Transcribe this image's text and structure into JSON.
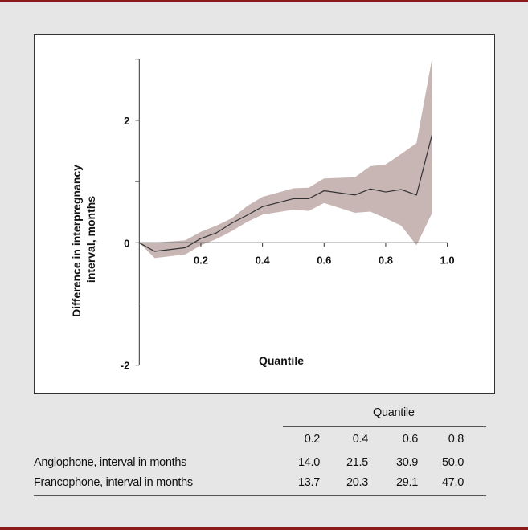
{
  "chart_data": {
    "type": "line",
    "xlabel": "Quantile",
    "ylabel": "Difference in interpregnancy interval, months",
    "xlim": [
      0,
      1.0
    ],
    "ylim": [
      -2,
      3
    ],
    "x_ticks": [
      0.2,
      0.4,
      0.6,
      0.8,
      1.0
    ],
    "x_tick_labels": [
      "0.2",
      "0.4",
      "0.6",
      "0.8",
      "1.0"
    ],
    "y_ticks": [
      -2,
      -1,
      0,
      1,
      2,
      3
    ],
    "y_tick_labels": {
      "-2": "-2",
      "0": "0",
      "2": "2"
    },
    "grid": false,
    "series": [
      {
        "x": [
          0,
          0.05,
          0.15,
          0.2,
          0.25,
          0.3,
          0.35,
          0.4,
          0.5,
          0.55,
          0.6,
          0.7,
          0.75,
          0.8,
          0.85,
          0.9,
          0.95
        ],
        "y": [
          0,
          -0.14,
          -0.08,
          0.07,
          0.16,
          0.32,
          0.45,
          0.59,
          0.72,
          0.72,
          0.85,
          0.78,
          0.88,
          0.83,
          0.87,
          0.78,
          1.76
        ],
        "color": "#333333"
      }
    ],
    "confidence_band": {
      "color": "#c8b6b5",
      "x": [
        0,
        0.05,
        0.15,
        0.2,
        0.25,
        0.3,
        0.35,
        0.4,
        0.45,
        0.5,
        0.55,
        0.6,
        0.7,
        0.75,
        0.8,
        0.85,
        0.9,
        0.95
      ],
      "upper": [
        0,
        0,
        0.04,
        0.18,
        0.28,
        0.4,
        0.6,
        0.75,
        0.82,
        0.89,
        0.9,
        1.05,
        1.07,
        1.25,
        1.28,
        1.45,
        1.63,
        3.0
      ],
      "lower": [
        0,
        -0.25,
        -0.19,
        -0.04,
        0.06,
        0.19,
        0.34,
        0.46,
        0.5,
        0.54,
        0.52,
        0.65,
        0.49,
        0.51,
        0.4,
        0.28,
        -0.04,
        0.48
      ]
    }
  },
  "table": {
    "group_header": "Quantile",
    "columns": [
      "0.2",
      "0.4",
      "0.6",
      "0.8"
    ],
    "rows": [
      {
        "label": "Anglophone, interval in months",
        "values": [
          "14.0",
          "21.5",
          "30.9",
          "50.0"
        ]
      },
      {
        "label": "Francophone, interval in months",
        "values": [
          "13.7",
          "20.3",
          "29.1",
          "47.0"
        ]
      }
    ]
  }
}
